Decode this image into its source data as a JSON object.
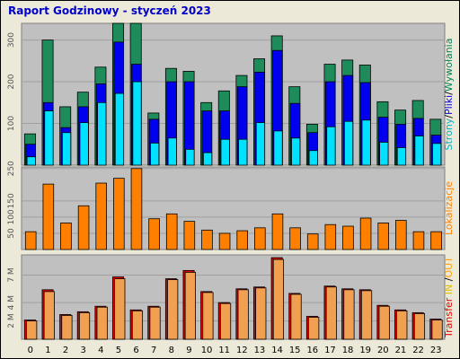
{
  "title": "Raport Godzinowy -  styczeń 2023",
  "chart_data": {
    "type": "bar",
    "title": "Raport Godzinowy -  styczeń 2023",
    "categories": [
      "0",
      "1",
      "2",
      "3",
      "4",
      "5",
      "6",
      "7",
      "8",
      "9",
      "10",
      "11",
      "12",
      "13",
      "14",
      "15",
      "16",
      "17",
      "18",
      "19",
      "20",
      "21",
      "22",
      "23"
    ],
    "panels": [
      {
        "ylim": [
          0,
          340
        ],
        "ticks": [
          "100",
          "200",
          "300"
        ],
        "tick_values": [
          100,
          200,
          300
        ],
        "labels": [
          {
            "text": "Strony",
            "color": "#00b0c0"
          },
          {
            "text": "/",
            "color": "#000000"
          },
          {
            "text": "Pliki",
            "color": "#0000e0"
          },
          {
            "text": "/",
            "color": "#000000"
          },
          {
            "text": "Wywołania",
            "color": "#008060"
          }
        ],
        "series": [
          {
            "name": "Wywołania",
            "color": "#1e8c5a",
            "values": [
              75,
              300,
              140,
              175,
              235,
              340,
              340,
              125,
              232,
              225,
              150,
              178,
              215,
              255,
              310,
              188,
              98,
              242,
              252,
              240,
              152,
              132,
              155,
              110
            ]
          },
          {
            "name": "Pliki",
            "color": "#0000ee",
            "values": [
              50,
              150,
              90,
              140,
              195,
              295,
              242,
              110,
              200,
              200,
              130,
              130,
              188,
              223,
              275,
              148,
              78,
              200,
              215,
              198,
              115,
              98,
              112,
              72
            ]
          },
          {
            "name": "Strony",
            "color": "#00e0ff",
            "values": [
              20,
              130,
              78,
              102,
              150,
              172,
              200,
              53,
              65,
              38,
              30,
              62,
              62,
              102,
              82,
              65,
              35,
              92,
              105,
              108,
              55,
              42,
              70,
              52
            ]
          }
        ]
      },
      {
        "ylim": [
          0,
          255
        ],
        "ticks": [
          "50",
          "100",
          "150",
          "250"
        ],
        "tick_values": [
          50,
          100,
          150,
          250
        ],
        "labels": [
          {
            "text": "Lokalizacje",
            "color": "#ff8000"
          }
        ],
        "series": [
          {
            "name": "Lokalizacje",
            "color": "#ff8000",
            "values": [
              55,
              202,
              82,
              135,
              205,
              220,
              250,
              95,
              110,
              87,
              60,
              50,
              58,
              67,
              110,
              67,
              48,
              77,
              72,
              97,
              82,
              90,
              55,
              55
            ]
          }
        ]
      },
      {
        "ylim": [
          0,
          9.2
        ],
        "ticks": [
          "2 M",
          "4 M",
          "7 M"
        ],
        "tick_values": [
          2,
          4,
          7
        ],
        "labels": [
          {
            "text": "Transfer",
            "color": "#e00000"
          },
          {
            "text": " IN ",
            "color": "#e0c000"
          },
          {
            "text": "/",
            "color": "#000000"
          },
          {
            "text": "OUT",
            "color": "#ffa000"
          },
          {
            "text": " ",
            "color": "#000000"
          },
          {
            "text": "",
            "color": "#000000"
          }
        ],
        "series": [
          {
            "name": "Transfer",
            "color": "#e60000",
            "values": [
              2.1,
              5.4,
              2.7,
              3.0,
              3.6,
              6.8,
              3.2,
              3.6,
              6.6,
              7.5,
              5.2,
              4.0,
              5.5,
              5.7,
              8.9,
              5.0,
              2.5,
              5.8,
              5.5,
              5.4,
              3.7,
              3.2,
              2.9,
              2.2
            ]
          },
          {
            "name": "OUT",
            "color": "#f0a050",
            "values": [
              2.0,
              5.2,
              2.6,
              2.9,
              3.5,
              6.6,
              3.1,
              3.5,
              6.5,
              7.3,
              5.1,
              3.9,
              5.4,
              5.6,
              8.7,
              4.9,
              2.4,
              5.7,
              5.4,
              5.3,
              3.6,
              3.1,
              2.8,
              2.1
            ]
          }
        ]
      }
    ]
  }
}
